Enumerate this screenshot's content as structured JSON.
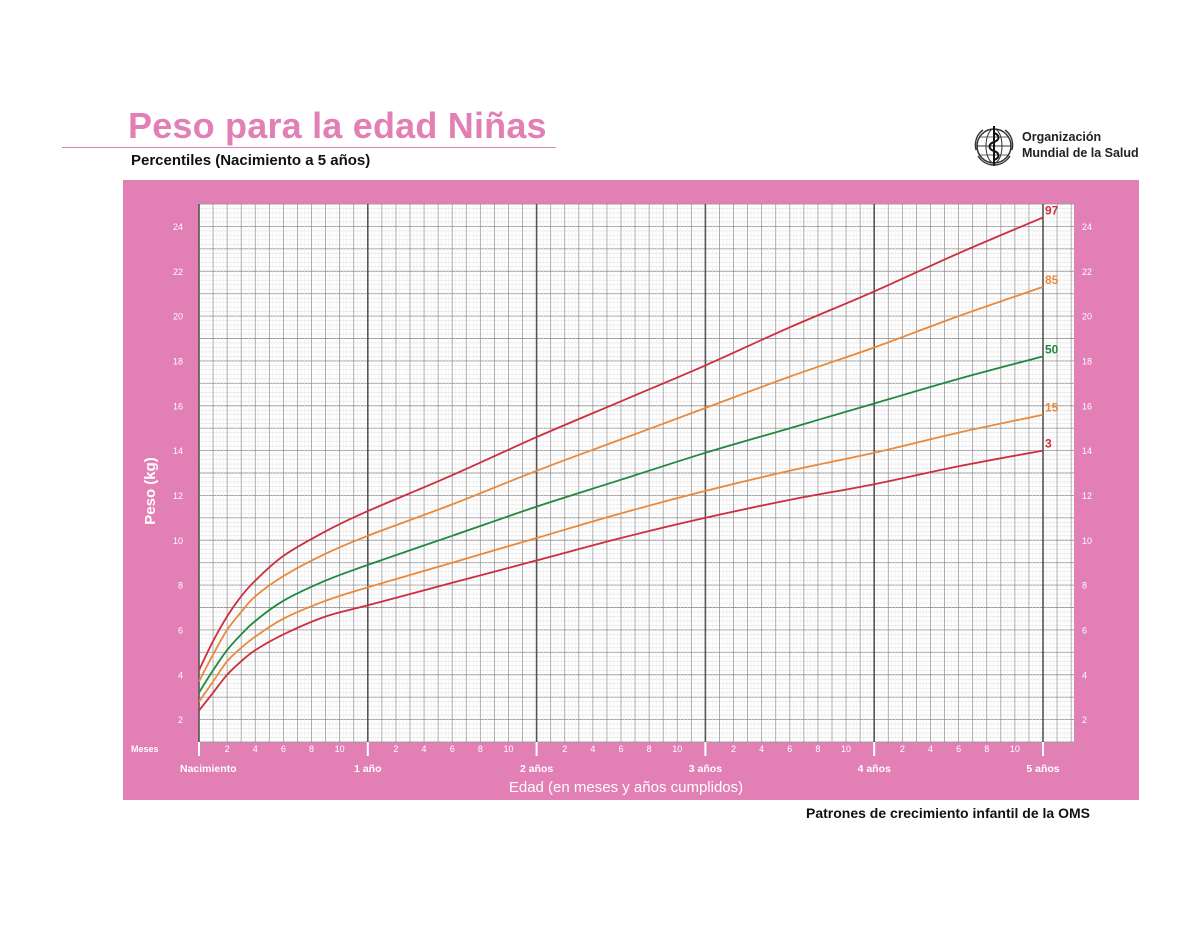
{
  "page": {
    "title": "Peso para la edad Niñas",
    "subtitle": "Percentiles (Nacimiento a 5 años)",
    "footer": "Patrones de crecimiento infantil de la OMS",
    "logo": {
      "line1": "Organización",
      "line2": "Mundial de la Salud",
      "icon": "who-emblem-icon"
    }
  },
  "colors": {
    "accent": "#e27fb4",
    "panel": "#e27fb4",
    "plot_bg": "#ffffff",
    "p97": "#cc2f3d",
    "p85": "#e8893c",
    "p50": "#1e8a3f",
    "p15": "#e8893c",
    "p3": "#cc2f3d"
  },
  "chart_data": {
    "type": "line",
    "title": "Peso para la edad Niñas",
    "subtitle": "Percentiles (Nacimiento a 5 años)",
    "xlabel": "Edad (en meses y años cumplidos)",
    "ylabel": "Peso (kg)",
    "x_unit_label": "Meses",
    "xlim": [
      0,
      60
    ],
    "ylim": [
      1,
      25
    ],
    "y_ticks": [
      2,
      4,
      6,
      8,
      10,
      12,
      14,
      16,
      18,
      20,
      22,
      24
    ],
    "month_tick_labels": [
      "2",
      "4",
      "6",
      "8",
      "10"
    ],
    "year_labels": [
      {
        "month": 0,
        "label": "Nacimiento"
      },
      {
        "month": 12,
        "label": "1 año"
      },
      {
        "month": 24,
        "label": "2 años"
      },
      {
        "month": 36,
        "label": "3 años"
      },
      {
        "month": 48,
        "label": "4 años"
      },
      {
        "month": 60,
        "label": "5 años"
      }
    ],
    "grid": true,
    "x": [
      0,
      1,
      2,
      3,
      4,
      6,
      9,
      12,
      18,
      24,
      30,
      36,
      42,
      48,
      54,
      60
    ],
    "series": [
      {
        "name": "97",
        "color": "#cc2f3d",
        "values": [
          4.2,
          5.5,
          6.6,
          7.5,
          8.2,
          9.3,
          10.4,
          11.3,
          12.9,
          14.6,
          16.2,
          17.8,
          19.5,
          21.1,
          22.8,
          24.4
        ]
      },
      {
        "name": "85",
        "color": "#e8893c",
        "values": [
          3.7,
          4.9,
          6.0,
          6.8,
          7.5,
          8.4,
          9.4,
          10.2,
          11.6,
          13.1,
          14.5,
          15.9,
          17.3,
          18.6,
          20.0,
          21.3
        ]
      },
      {
        "name": "50",
        "color": "#1e8a3f",
        "values": [
          3.2,
          4.2,
          5.1,
          5.8,
          6.4,
          7.3,
          8.2,
          8.9,
          10.2,
          11.5,
          12.7,
          13.9,
          15.0,
          16.1,
          17.2,
          18.2
        ]
      },
      {
        "name": "15",
        "color": "#e8893c",
        "values": [
          2.8,
          3.7,
          4.6,
          5.2,
          5.7,
          6.5,
          7.3,
          7.9,
          9.0,
          10.1,
          11.2,
          12.2,
          13.1,
          13.9,
          14.8,
          15.6
        ]
      },
      {
        "name": "3",
        "color": "#cc2f3d",
        "values": [
          2.4,
          3.2,
          4.0,
          4.6,
          5.1,
          5.8,
          6.6,
          7.1,
          8.1,
          9.1,
          10.1,
          11.0,
          11.8,
          12.5,
          13.3,
          14.0
        ]
      }
    ]
  }
}
